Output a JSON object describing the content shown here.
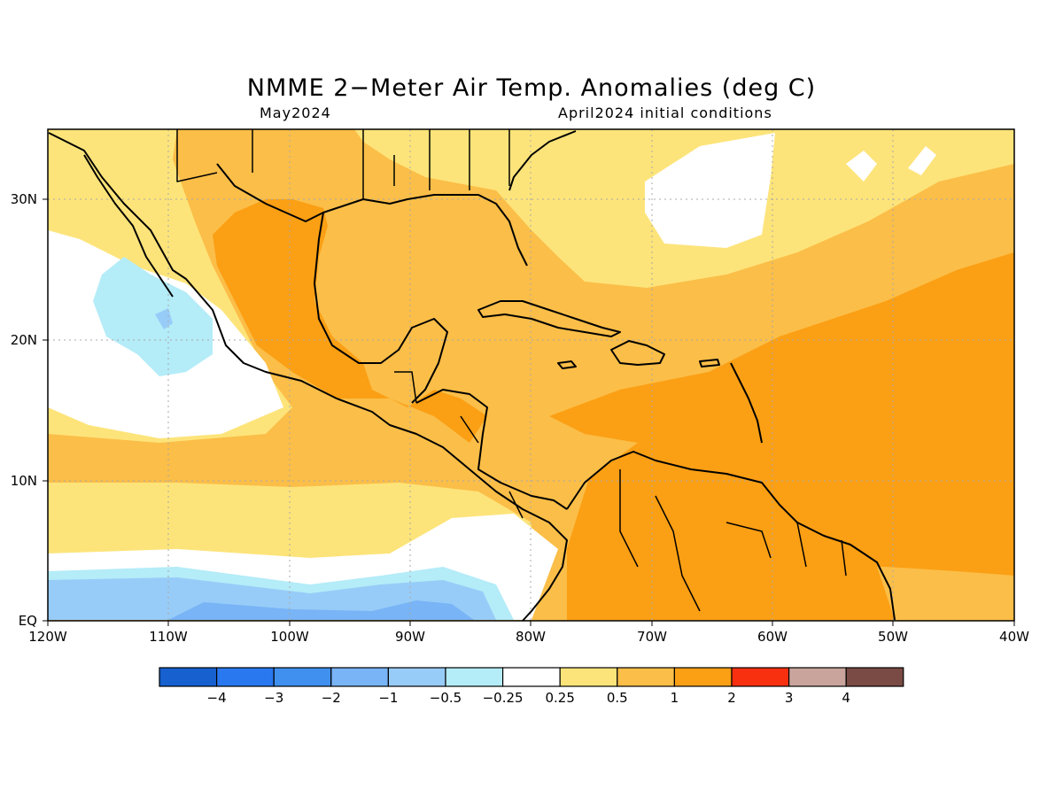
{
  "map": {
    "title": "NMME 2−Meter Air Temp. Anomalies (deg C)",
    "valid_month": "May2024",
    "initial_conditions": "April2024 initial conditions",
    "lat_labels": [
      "30N",
      "20N",
      "10N",
      "EQ"
    ],
    "lon_labels": [
      "120W",
      "110W",
      "100W",
      "90W",
      "80W",
      "70W",
      "60W",
      "50W",
      "40W"
    ],
    "extent": {
      "lon": [
        -120,
        -40
      ],
      "lat": [
        0,
        35
      ]
    },
    "gridlines": "dotted"
  },
  "legend": {
    "colors": [
      "#1660d0",
      "#2a78f0",
      "#4090f0",
      "#78b4f6",
      "#98ccf8",
      "#b4ecf8",
      "#ffffff",
      "#fde47a",
      "#fbbe48",
      "#fb9f14",
      "#f83010",
      "#c8a49c",
      "#7a4a44"
    ],
    "labels": [
      "−4",
      "−3",
      "−2",
      "−1",
      "−0.5",
      "−0.25",
      "0.25",
      "0.5",
      "1",
      "2",
      "3",
      "4"
    ]
  }
}
